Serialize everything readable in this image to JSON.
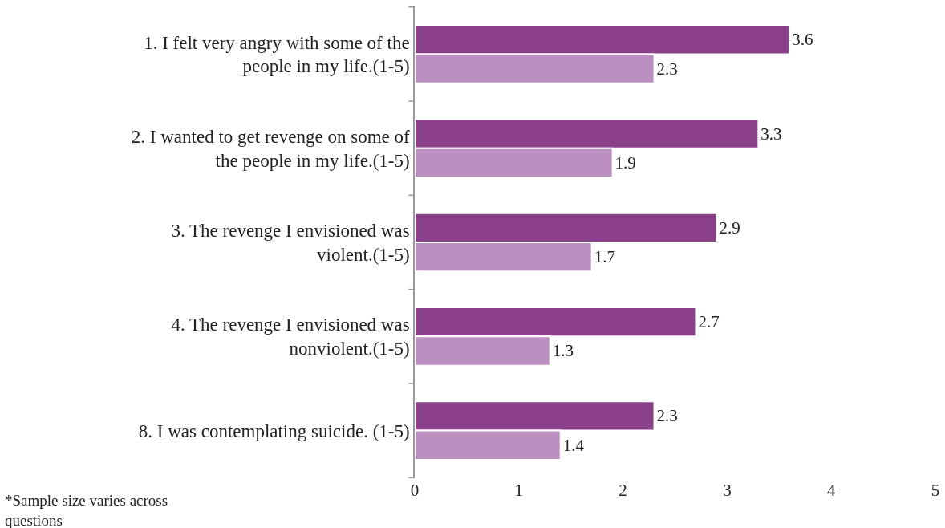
{
  "chart_data": {
    "type": "bar",
    "orientation": "horizontal",
    "categories": [
      "1. I felt very angry with some of the people in my life.(1-5)",
      "2. I wanted to get revenge on some of the people in my life.(1-5)",
      "3. The revenge I envisioned was violent.(1-5)",
      "4. The revenge I envisioned was nonviolent.(1-5)",
      "8. I was contemplating suicide. (1-5)"
    ],
    "series": [
      {
        "color": "#8b4189",
        "values": [
          3.6,
          3.3,
          2.9,
          2.7,
          2.3
        ]
      },
      {
        "color": "#bb8fc0",
        "values": [
          2.3,
          1.9,
          1.7,
          1.3,
          1.4
        ]
      }
    ],
    "xlim": [
      0,
      5
    ],
    "xticks": [
      0,
      1,
      2,
      3,
      4,
      5
    ],
    "data_labels": true,
    "legend": false,
    "annotations": [
      "*Sample size varies across questions"
    ]
  }
}
